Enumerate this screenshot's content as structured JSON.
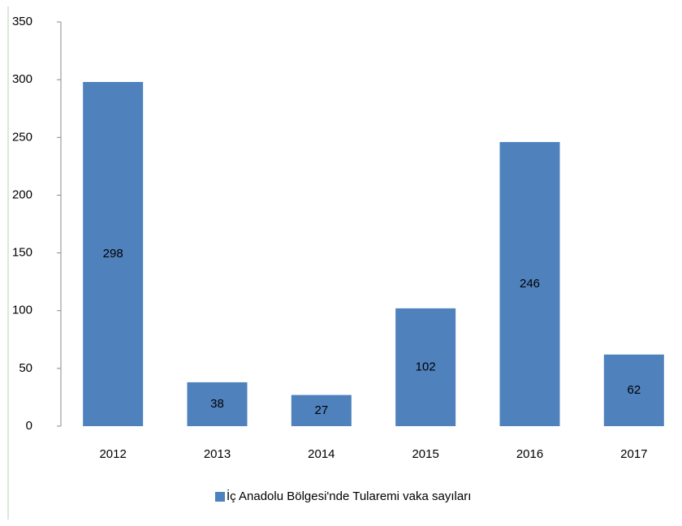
{
  "chart_data": {
    "type": "bar",
    "categories": [
      "2012",
      "2013",
      "2014",
      "2015",
      "2016",
      "2017"
    ],
    "series": [
      {
        "name": "İç Anadolu Bölgesi'nde Tularemi vaka sayıları",
        "color": "#4f81bd",
        "values": [
          298,
          38,
          27,
          102,
          246,
          62
        ]
      }
    ],
    "ylim": [
      0,
      350
    ],
    "yticks": [
      0,
      50,
      100,
      150,
      200,
      250,
      300,
      350
    ],
    "grid": false,
    "legend": "bottom"
  }
}
